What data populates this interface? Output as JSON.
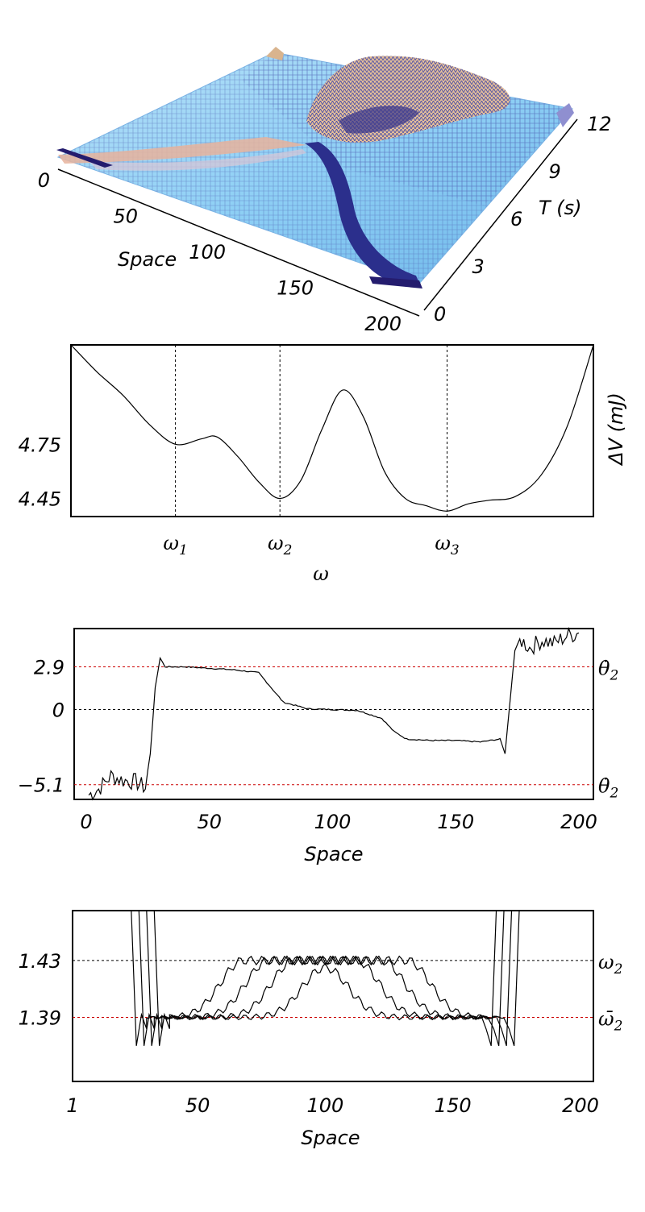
{
  "chart_data": [
    {
      "type": "surface",
      "xlabel": "Space",
      "ylabel": "T (s)",
      "x_ticks": [
        "0",
        "50",
        "100",
        "150",
        "200"
      ],
      "y_ticks": [
        "0",
        "3",
        "6",
        "9",
        "12"
      ],
      "xlim": [
        0,
        200
      ],
      "ylim": [
        0,
        12
      ],
      "colors": {
        "low": "#1a1a7a",
        "mid": "#8fd0f5",
        "high": "#e8b98c"
      }
    },
    {
      "type": "line",
      "xlabel": "ω",
      "ylabel": "ΔV (mJ)",
      "y_ticks": [
        "4.75",
        "4.45"
      ],
      "x_ticks": [
        "ω1",
        "ω2",
        "ω3"
      ],
      "markers": [
        {
          "name": "ω1",
          "x": 0.2
        },
        {
          "name": "ω2",
          "x": 0.4
        },
        {
          "name": "ω3",
          "x": 0.72
        }
      ],
      "x": [
        0.0,
        0.05,
        0.1,
        0.15,
        0.2,
        0.25,
        0.28,
        0.32,
        0.36,
        0.4,
        0.44,
        0.48,
        0.52,
        0.56,
        0.6,
        0.64,
        0.68,
        0.72,
        0.76,
        0.8,
        0.85,
        0.9,
        0.95,
        1.0
      ],
      "y": [
        5.3,
        5.15,
        5.02,
        4.86,
        4.75,
        4.78,
        4.79,
        4.68,
        4.54,
        4.45,
        4.55,
        4.83,
        5.05,
        4.9,
        4.6,
        4.45,
        4.41,
        4.38,
        4.42,
        4.44,
        4.46,
        4.58,
        4.85,
        5.3
      ],
      "ylim": [
        4.35,
        5.3
      ]
    },
    {
      "type": "line",
      "xlabel": "Space",
      "x_ticks": [
        "0",
        "50",
        "100",
        "150",
        "200"
      ],
      "y_ticks": [
        "2.9",
        "0",
        "−5.1"
      ],
      "right_labels": [
        "θ̇2",
        "θ̇2"
      ],
      "xlim": [
        0,
        200
      ],
      "ylim": [
        -6.1,
        5.5
      ],
      "reference_lines": [
        2.9,
        0,
        -5.1
      ],
      "x": [
        1,
        5,
        10,
        15,
        20,
        24,
        26,
        28,
        30,
        32,
        40,
        50,
        60,
        70,
        75,
        80,
        90,
        100,
        110,
        120,
        125,
        130,
        140,
        150,
        160,
        168,
        170,
        172,
        174,
        176,
        180,
        185,
        190,
        195,
        200
      ],
      "y": [
        -5.8,
        -5.4,
        -4.5,
        -4.8,
        -4.9,
        -5.3,
        -3.0,
        1.5,
        3.5,
        2.9,
        2.9,
        2.8,
        2.7,
        2.5,
        1.5,
        0.5,
        0.05,
        0.0,
        -0.05,
        -0.6,
        -1.5,
        -2.0,
        -2.1,
        -2.1,
        -2.2,
        -2.0,
        -3.0,
        0.5,
        4.0,
        4.8,
        4.2,
        4.7,
        4.5,
        5.0,
        5.2
      ],
      "series_color": "#000000",
      "reference_color": "#cc0000"
    },
    {
      "type": "line",
      "xlabel": "Space",
      "x_ticks": [
        "1",
        "50",
        "100",
        "150",
        "200"
      ],
      "y_ticks": [
        "1.43",
        "1.39"
      ],
      "right_labels": [
        "ω2",
        "ω̄2"
      ],
      "xlim": [
        1,
        200
      ],
      "ylim": [
        1.345,
        1.465
      ],
      "reference_lines": [
        1.43,
        1.39
      ],
      "series": [
        {
          "center": 100,
          "plateau_half_width": 0,
          "peak": 1.425
        },
        {
          "center": 100,
          "plateau_half_width": 12,
          "peak": 1.43
        },
        {
          "center": 100,
          "plateau_half_width": 22,
          "peak": 1.43
        },
        {
          "center": 100,
          "plateau_half_width": 32,
          "peak": 1.43
        }
      ]
    }
  ],
  "labels": {
    "p1_xlabel": "Space",
    "p1_ylabel": "T (s)",
    "p2_xlabel": "ω",
    "p2_ylabel": "ΔV (mJ)",
    "p3_xlabel": "Space",
    "p4_xlabel": "Space"
  }
}
